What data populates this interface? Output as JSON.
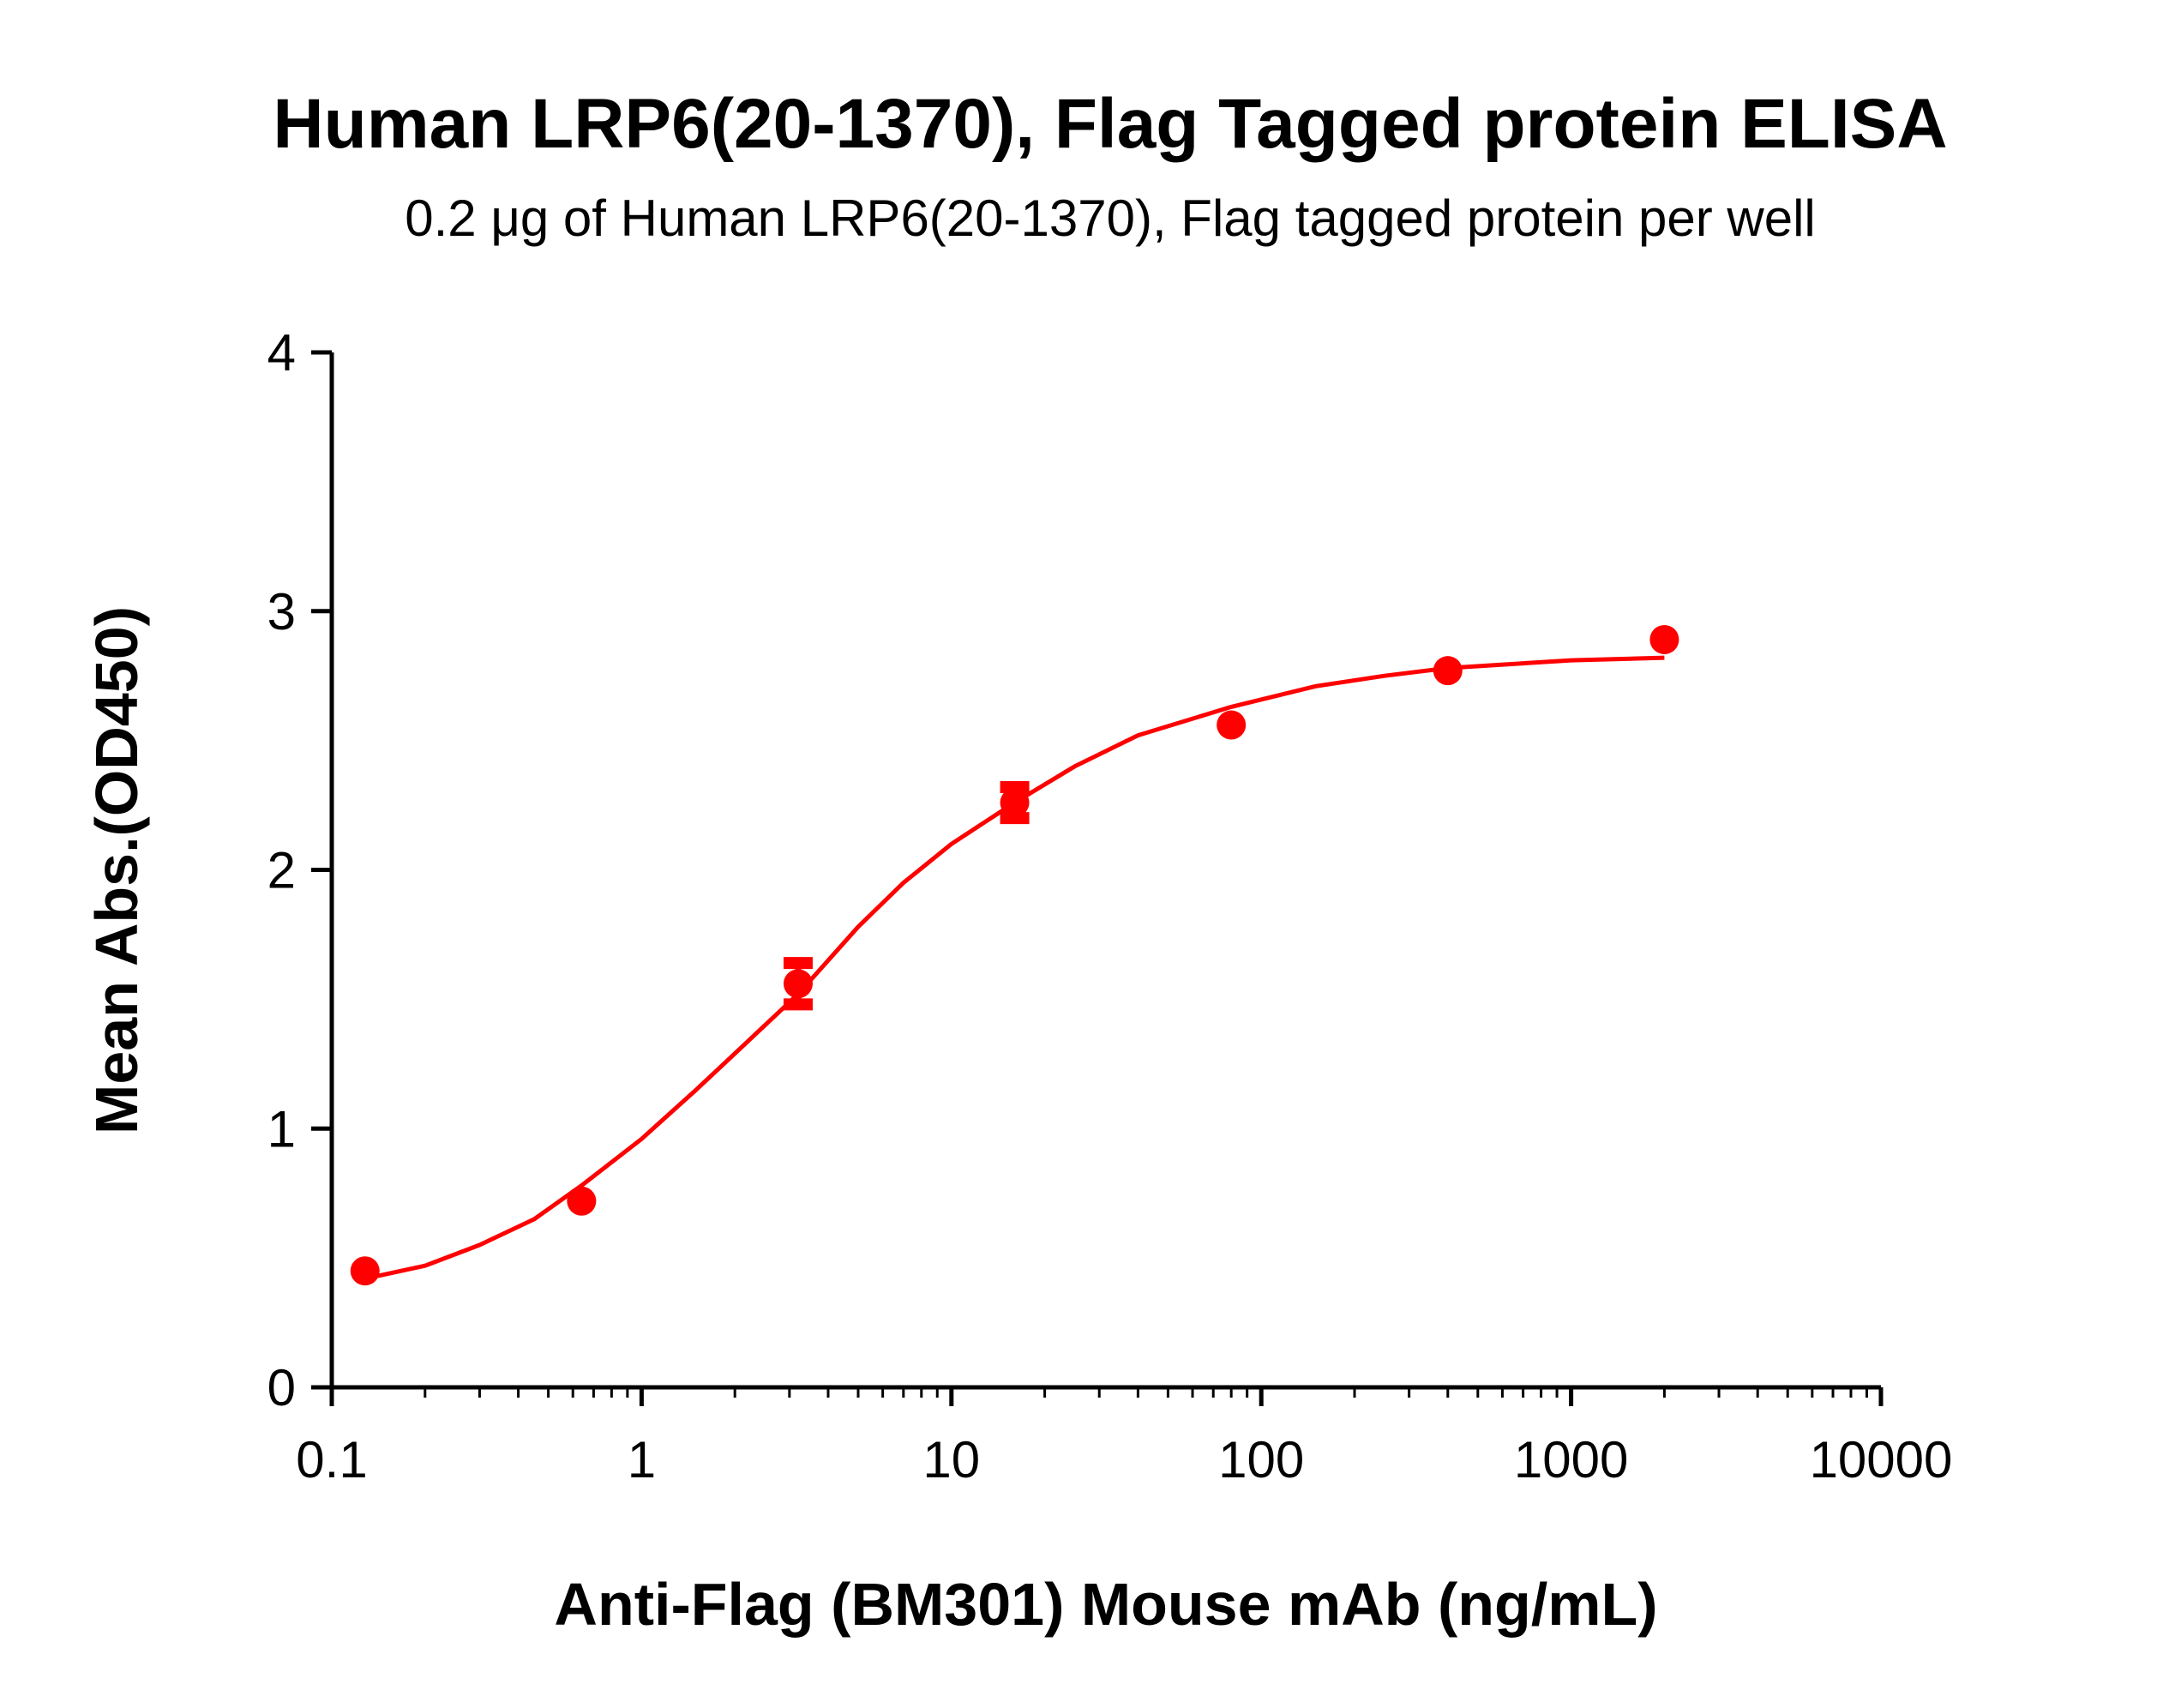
{
  "chart_data": {
    "type": "scatter",
    "title": "Human LRP6(20-1370), Flag Tagged protein ELISA",
    "subtitle": "0.2 μg of Human LRP6(20-1370), Flag tagged protein per well",
    "xlabel": "Anti-Flag (BM301) Mouse mAb (ng/mL)",
    "ylabel": "Mean Abs.(OD450)",
    "xscale": "log",
    "xlim": [
      0.1,
      10000
    ],
    "ylim": [
      0,
      4
    ],
    "xticks": [
      "0.1",
      "1",
      "10",
      "100",
      "1000",
      "10000"
    ],
    "yticks": [
      "0",
      "1",
      "2",
      "3",
      "4"
    ],
    "grid": false,
    "color": "#ff0000",
    "points": [
      {
        "x": 0.128,
        "y": 0.45,
        "err": 0.02
      },
      {
        "x": 0.64,
        "y": 0.72,
        "err": 0.02
      },
      {
        "x": 3.2,
        "y": 1.56,
        "err": 0.08
      },
      {
        "x": 16,
        "y": 2.26,
        "err": 0.06
      },
      {
        "x": 80,
        "y": 2.56,
        "err": 0.02
      },
      {
        "x": 400,
        "y": 2.77,
        "err": 0.02
      },
      {
        "x": 2000,
        "y": 2.89,
        "err": 0.02
      }
    ],
    "fit_curve": [
      [
        0.128,
        0.42
      ],
      [
        0.2,
        0.47
      ],
      [
        0.3,
        0.55
      ],
      [
        0.45,
        0.65
      ],
      [
        0.64,
        0.78
      ],
      [
        1,
        0.96
      ],
      [
        1.5,
        1.15
      ],
      [
        2,
        1.29
      ],
      [
        3.2,
        1.52
      ],
      [
        5,
        1.78
      ],
      [
        7,
        1.95
      ],
      [
        10,
        2.1
      ],
      [
        16,
        2.26
      ],
      [
        25,
        2.4
      ],
      [
        40,
        2.52
      ],
      [
        80,
        2.63
      ],
      [
        150,
        2.71
      ],
      [
        250,
        2.75
      ],
      [
        400,
        2.78
      ],
      [
        1000,
        2.81
      ],
      [
        2000,
        2.82
      ]
    ]
  }
}
